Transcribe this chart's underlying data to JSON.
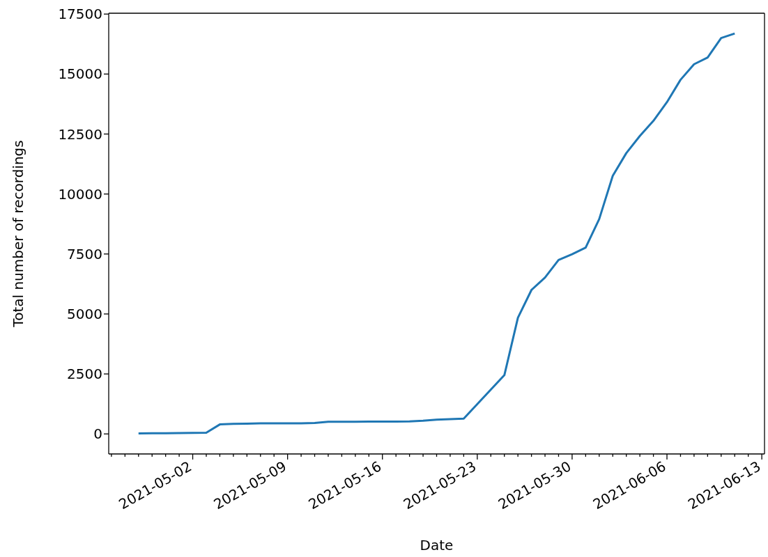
{
  "chart_data": {
    "type": "line",
    "xlabel": "Date",
    "ylabel": "Total number of recordings",
    "x": [
      "2021-04-28",
      "2021-04-29",
      "2021-04-30",
      "2021-05-01",
      "2021-05-02",
      "2021-05-03",
      "2021-05-04",
      "2021-05-05",
      "2021-05-06",
      "2021-05-07",
      "2021-05-08",
      "2021-05-09",
      "2021-05-10",
      "2021-05-11",
      "2021-05-12",
      "2021-05-13",
      "2021-05-14",
      "2021-05-15",
      "2021-05-16",
      "2021-05-17",
      "2021-05-18",
      "2021-05-19",
      "2021-05-20",
      "2021-05-21",
      "2021-05-22",
      "2021-05-25",
      "2021-05-26",
      "2021-05-27",
      "2021-05-28",
      "2021-05-29",
      "2021-05-30",
      "2021-05-31",
      "2021-06-01",
      "2021-06-02",
      "2021-06-03",
      "2021-06-04",
      "2021-06-05",
      "2021-06-06",
      "2021-06-07",
      "2021-06-08",
      "2021-06-09",
      "2021-06-10",
      "2021-06-11"
    ],
    "series": [
      {
        "color": "#1f77b4",
        "values": [
          20,
          25,
          30,
          35,
          40,
          50,
          395,
          420,
          430,
          440,
          440,
          440,
          445,
          455,
          505,
          510,
          510,
          515,
          515,
          515,
          520,
          550,
          595,
          615,
          640,
          2450,
          4840,
          6000,
          6520,
          7250,
          7490,
          7765,
          8955,
          10760,
          11705,
          12420,
          13050,
          13830,
          14760,
          15410,
          15690,
          16500,
          16690
        ]
      }
    ],
    "marker": "none",
    "xlim": [
      "2021-04-25T19:12",
      "2021-06-13T04:48"
    ],
    "ylim": [
      -835,
      17535
    ],
    "xticks": [
      {
        "value": "2021-04-26",
        "label": null
      },
      {
        "value": "2021-04-27",
        "label": null
      },
      {
        "value": "2021-04-28",
        "label": null
      },
      {
        "value": "2021-04-29",
        "label": null
      },
      {
        "value": "2021-04-30",
        "label": null
      },
      {
        "value": "2021-05-01",
        "label": null
      },
      "2021-05-02",
      {
        "value": "2021-05-03",
        "label": null
      },
      {
        "value": "2021-05-04",
        "label": null
      },
      {
        "value": "2021-05-05",
        "label": null
      },
      {
        "value": "2021-05-06",
        "label": null
      },
      {
        "value": "2021-05-07",
        "label": null
      },
      {
        "value": "2021-05-08",
        "label": null
      },
      "2021-05-09",
      {
        "value": "2021-05-10",
        "label": null
      },
      {
        "value": "2021-05-11",
        "label": null
      },
      {
        "value": "2021-05-12",
        "label": null
      },
      {
        "value": "2021-05-13",
        "label": null
      },
      {
        "value": "2021-05-14",
        "label": null
      },
      {
        "value": "2021-05-15",
        "label": null
      },
      "2021-05-16",
      {
        "value": "2021-05-17",
        "label": null
      },
      {
        "value": "2021-05-18",
        "label": null
      },
      {
        "value": "2021-05-19",
        "label": null
      },
      {
        "value": "2021-05-20",
        "label": null
      },
      {
        "value": "2021-05-21",
        "label": null
      },
      {
        "value": "2021-05-22",
        "label": null
      },
      "2021-05-23",
      {
        "value": "2021-05-24",
        "label": null
      },
      {
        "value": "2021-05-25",
        "label": null
      },
      {
        "value": "2021-05-26",
        "label": null
      },
      {
        "value": "2021-05-27",
        "label": null
      },
      {
        "value": "2021-05-28",
        "label": null
      },
      {
        "value": "2021-05-29",
        "label": null
      },
      "2021-05-30",
      {
        "value": "2021-05-31",
        "label": null
      },
      {
        "value": "2021-06-01",
        "label": null
      },
      {
        "value": "2021-06-02",
        "label": null
      },
      {
        "value": "2021-06-03",
        "label": null
      },
      {
        "value": "2021-06-04",
        "label": null
      },
      {
        "value": "2021-06-05",
        "label": null
      },
      "2021-06-06",
      {
        "value": "2021-06-07",
        "label": null
      },
      {
        "value": "2021-06-08",
        "label": null
      },
      {
        "value": "2021-06-09",
        "label": null
      },
      {
        "value": "2021-06-10",
        "label": null
      },
      {
        "value": "2021-06-11",
        "label": null
      },
      {
        "value": "2021-06-12",
        "label": null
      },
      "2021-06-13"
    ],
    "yticks": [
      0,
      2500,
      5000,
      7500,
      10000,
      12500,
      15000,
      17500
    ]
  }
}
